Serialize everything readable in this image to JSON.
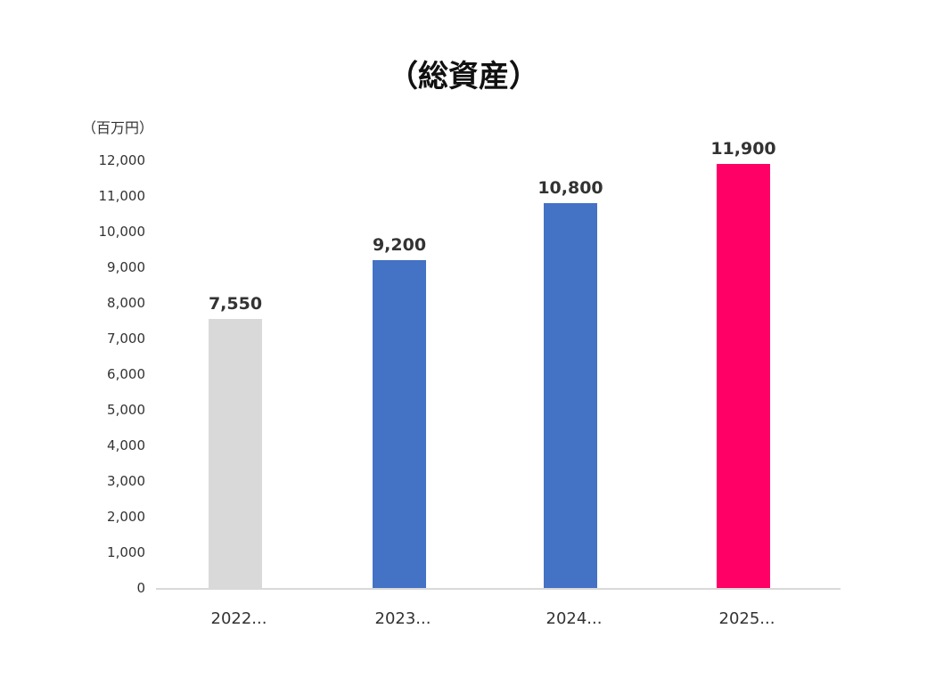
{
  "chart_data": {
    "type": "bar",
    "title": "（総資産）",
    "ylabel": "（百万円）",
    "xlabel": "",
    "categories": [
      "2022...",
      "2023...",
      "2024...",
      "2025..."
    ],
    "values": [
      7550,
      9200,
      10800,
      11900
    ],
    "data_labels": [
      "7,550",
      "9,200",
      "10,800",
      "11,900"
    ],
    "colors": [
      "#d9d9d9",
      "#4472c4",
      "#4472c4",
      "#ff0066"
    ],
    "ylim": [
      0,
      12000
    ],
    "yticks": [
      0,
      1000,
      2000,
      3000,
      4000,
      5000,
      6000,
      7000,
      8000,
      9000,
      10000,
      11000,
      12000
    ],
    "ytick_labels": [
      "0",
      "1,000",
      "2,000",
      "3,000",
      "4,000",
      "5,000",
      "6,000",
      "7,000",
      "8,000",
      "9,000",
      "10,000",
      "11,000",
      "12,000"
    ],
    "grid": false,
    "legend": "none",
    "axis_color": "#d9d9d9"
  }
}
